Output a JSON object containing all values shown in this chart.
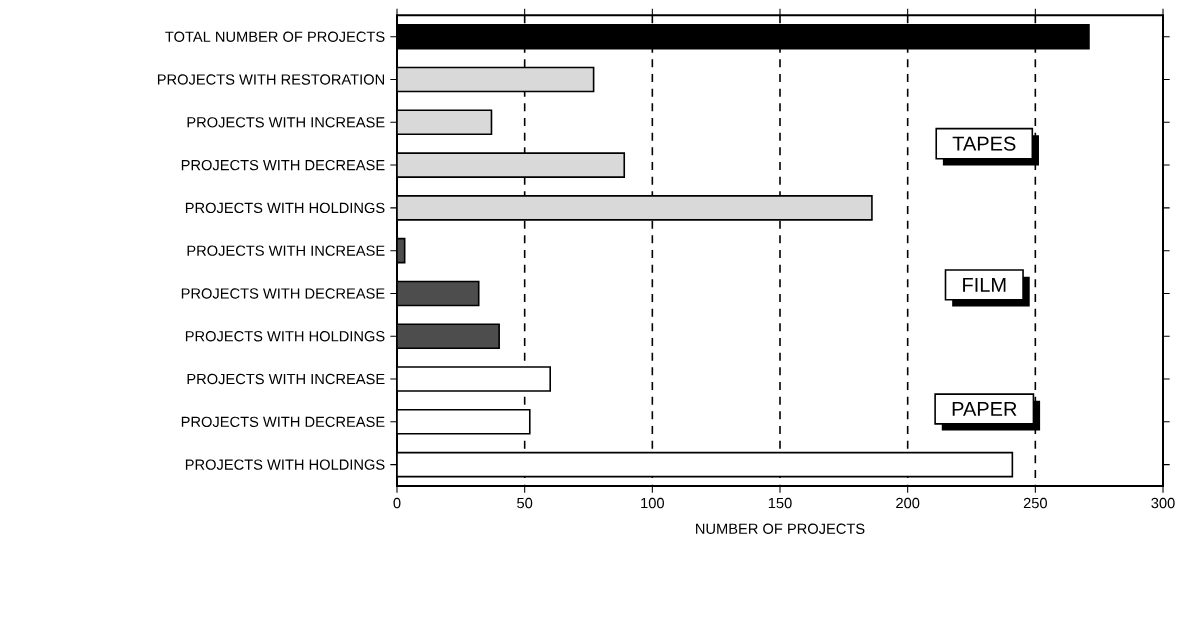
{
  "chart_data": {
    "type": "bar",
    "orientation": "horizontal",
    "categories": [
      "TOTAL NUMBER OF PROJECTS",
      "PROJECTS WITH RESTORATION",
      "PROJECTS WITH INCREASE",
      "PROJECTS WITH DECREASE",
      "PROJECTS WITH HOLDINGS",
      "PROJECTS WITH INCREASE",
      "PROJECTS WITH DECREASE",
      "PROJECTS WITH HOLDINGS",
      "PROJECTS WITH INCREASE",
      "PROJECTS WITH DECREASE",
      "PROJECTS WITH HOLDINGS"
    ],
    "values": [
      271,
      77,
      37,
      89,
      186,
      3,
      32,
      40,
      60,
      52,
      241
    ],
    "colors": [
      "#000000",
      "#d9d9d9",
      "#d9d9d9",
      "#d9d9d9",
      "#d9d9d9",
      "#4d4d4d",
      "#4d4d4d",
      "#4d4d4d",
      "#ffffff",
      "#ffffff",
      "#ffffff"
    ],
    "xlim": [
      0,
      300
    ],
    "xticks": [
      0,
      50,
      100,
      150,
      200,
      250,
      300
    ],
    "xlabel": "NUMBER OF PROJECTS",
    "grid": "x",
    "line_style": "dashed",
    "annotations": [
      "TAPES",
      "FILM",
      "PAPER"
    ]
  }
}
